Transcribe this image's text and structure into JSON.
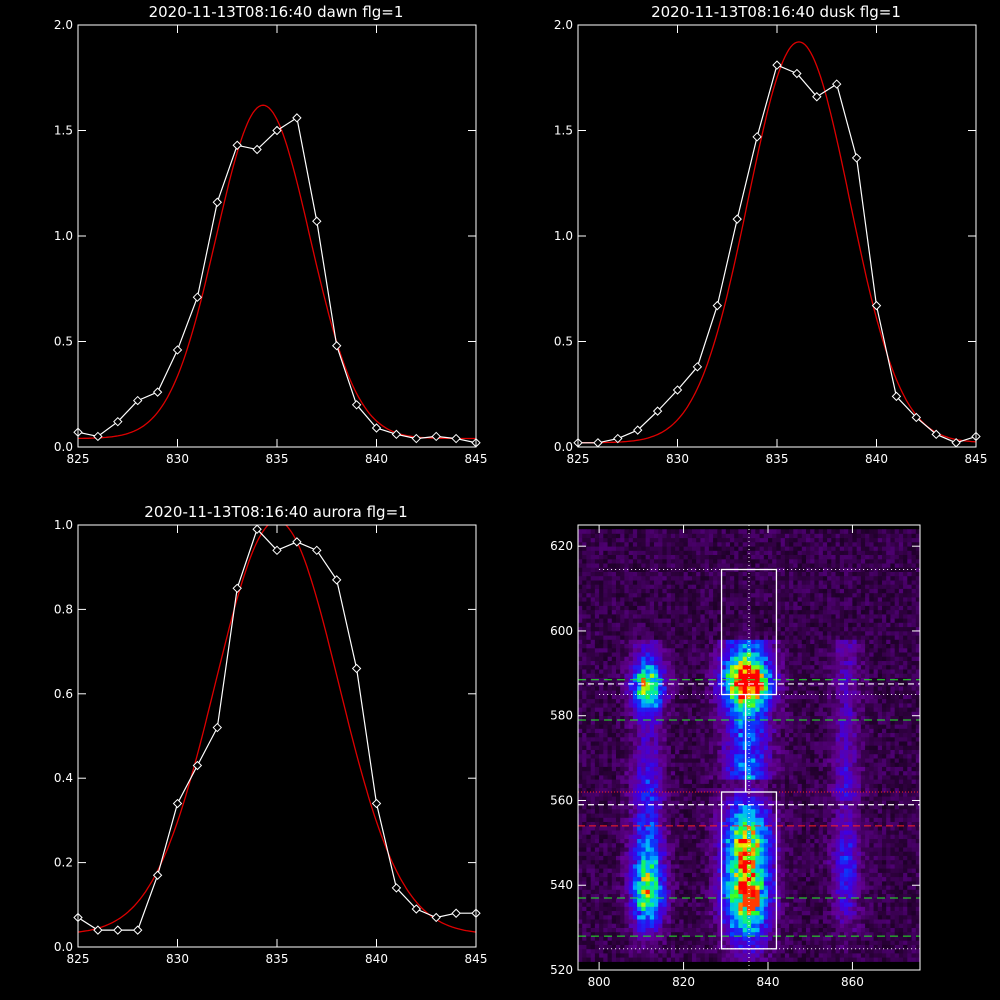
{
  "chart_data": [
    {
      "type": "line",
      "title": "2020-11-13T08:16:40 dawn flg=1",
      "xlim": [
        825,
        845
      ],
      "ylim": [
        0,
        2
      ],
      "xticks": [
        825,
        830,
        835,
        840,
        845
      ],
      "yticks": [
        0.0,
        0.5,
        1.0,
        1.5,
        2.0
      ],
      "ytick_labels": [
        "0.0",
        "0.5",
        "1.0",
        "1.5",
        "2.0"
      ],
      "colors": {
        "observed": "#ffffff",
        "fit": "#dd0000"
      },
      "observed": {
        "x": [
          825,
          826,
          827,
          828,
          829,
          830,
          831,
          832,
          833,
          834,
          835,
          836,
          837,
          838,
          839,
          840,
          841,
          842,
          843,
          844,
          845
        ],
        "y": [
          0.07,
          0.05,
          0.12,
          0.22,
          0.26,
          0.46,
          0.71,
          1.16,
          1.43,
          1.41,
          1.5,
          1.56,
          1.07,
          0.48,
          0.2,
          0.09,
          0.06,
          0.04,
          0.05,
          0.04,
          0.02
        ]
      },
      "fit": {
        "amplitude": 1.58,
        "center": 834.3,
        "sigma": 2.35,
        "offset": 0.04
      }
    },
    {
      "type": "line",
      "title": "2020-11-13T08:16:40 dusk flg=1",
      "xlim": [
        825,
        845
      ],
      "ylim": [
        0,
        2
      ],
      "xticks": [
        825,
        830,
        835,
        840,
        845
      ],
      "yticks": [
        0.0,
        0.5,
        1.0,
        1.5,
        2.0
      ],
      "ytick_labels": [
        "0.0",
        "0.5",
        "1.0",
        "1.5",
        "2.0"
      ],
      "colors": {
        "observed": "#ffffff",
        "fit": "#dd0000"
      },
      "observed": {
        "x": [
          825,
          826,
          827,
          828,
          829,
          830,
          831,
          832,
          833,
          834,
          835,
          836,
          837,
          838,
          839,
          840,
          841,
          842,
          843,
          844,
          845
        ],
        "y": [
          0.02,
          0.02,
          0.04,
          0.08,
          0.17,
          0.27,
          0.38,
          0.67,
          1.08,
          1.47,
          1.81,
          1.77,
          1.66,
          1.72,
          1.37,
          0.67,
          0.24,
          0.14,
          0.06,
          0.02,
          0.05
        ]
      },
      "fit": {
        "amplitude": 1.9,
        "center": 836.1,
        "sigma": 2.55,
        "offset": 0.02
      }
    },
    {
      "type": "line",
      "title": "2020-11-13T08:16:40 aurora flg=1",
      "xlim": [
        825,
        845
      ],
      "ylim": [
        0,
        1
      ],
      "xticks": [
        825,
        830,
        835,
        840,
        845
      ],
      "yticks": [
        0.0,
        0.2,
        0.4,
        0.6,
        0.8,
        1.0
      ],
      "ytick_labels": [
        "0.0",
        "0.2",
        "0.4",
        "0.6",
        "0.8",
        "1.0"
      ],
      "colors": {
        "observed": "#ffffff",
        "fit": "#dd0000"
      },
      "observed": {
        "x": [
          825,
          826,
          827,
          828,
          829,
          830,
          831,
          832,
          833,
          834,
          835,
          836,
          837,
          838,
          839,
          840,
          841,
          842,
          843,
          844,
          845
        ],
        "y": [
          0.07,
          0.04,
          0.04,
          0.04,
          0.17,
          0.34,
          0.43,
          0.52,
          0.85,
          0.99,
          0.94,
          0.96,
          0.94,
          0.87,
          0.66,
          0.34,
          0.14,
          0.09,
          0.07,
          0.08,
          0.08
        ]
      },
      "fit": {
        "amplitude": 0.98,
        "center": 835.0,
        "sigma": 3.1,
        "offset": 0.03
      }
    },
    {
      "type": "heatmap",
      "xlim": [
        795,
        876
      ],
      "ylim": [
        520,
        625
      ],
      "xticks": [
        800,
        820,
        840,
        860
      ],
      "yticks": [
        520,
        540,
        560,
        580,
        600,
        620
      ],
      "colors": {
        "box": "#ffffff",
        "green_dashes": "#22ee22",
        "red_lines": "#ff2222",
        "white_dashes": "#ffffff"
      },
      "source_columns": [
        {
          "x": 811.5,
          "width": 7
        },
        {
          "x": 835,
          "width": 10
        },
        {
          "x": 858.5,
          "width": 6
        }
      ],
      "peak_intensity": [
        {
          "x": 811,
          "y": 587,
          "value": 0.55
        },
        {
          "x": 811,
          "y": 537,
          "value": 0.6
        },
        {
          "x": 835,
          "y": 588,
          "value": 0.7
        },
        {
          "x": 836,
          "y": 537,
          "value": 1.0
        },
        {
          "x": 858,
          "y": 545,
          "value": 0.3
        }
      ],
      "boxes": [
        {
          "x0": 829,
          "x1": 842,
          "y0": 585,
          "y1": 614.5
        },
        {
          "x0": 829,
          "x1": 842,
          "y0": 525,
          "y1": 562
        }
      ],
      "center_x": 835.5,
      "dotted_white_y": [
        614.5,
        585,
        525
      ],
      "dashed_green_y": [
        588.5,
        579,
        537,
        528
      ],
      "dashed_white_y": [
        587.5,
        559
      ],
      "red_y": [
        562,
        554
      ]
    }
  ]
}
